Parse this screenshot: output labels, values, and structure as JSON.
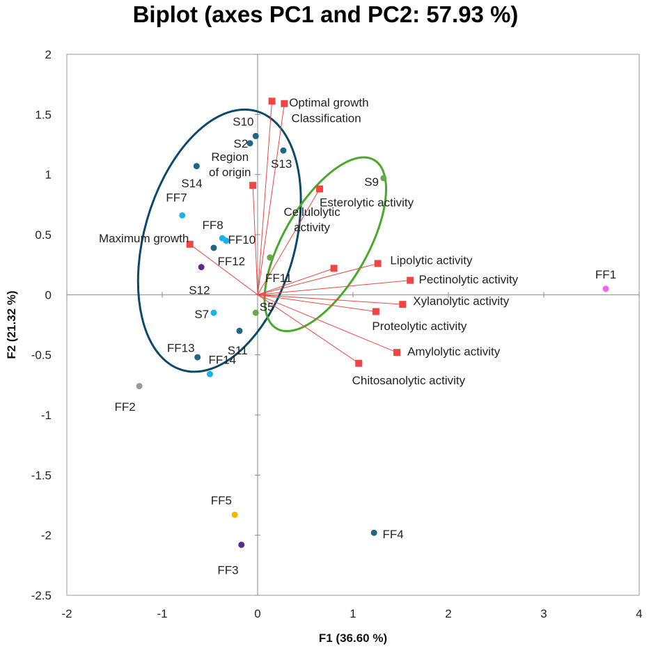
{
  "title": "Biplot (axes PC1 and PC2: 57.93 %)",
  "chart_data": {
    "type": "scatter",
    "title": "Biplot (axes PC1 and PC2: 57.93 %)",
    "xlabel": "F1 (36.60 %)",
    "ylabel": "F2 (21.32 %)",
    "xlim": [
      -2,
      4
    ],
    "ylim": [
      -2.5,
      2
    ],
    "xticks": [
      -2,
      -1,
      0,
      1,
      2,
      3,
      4
    ],
    "yticks": [
      -2.5,
      -2,
      -1.5,
      -1,
      -0.5,
      0,
      0.5,
      1,
      1.5,
      2
    ],
    "xtick_labels": [
      "-2",
      "-1",
      "0",
      "1",
      "2",
      "3",
      "4"
    ],
    "ytick_labels": [
      "-2.5",
      "-2",
      "-1.5",
      "-1",
      "-0.5",
      "0",
      "0.5",
      "1",
      "1.5",
      "2"
    ],
    "colors": {
      "variable": "#f04545",
      "dark_blue": "#1f6684",
      "light_blue": "#19b2ee",
      "purple": "#5b2a8c",
      "green": "#6aa84f",
      "magenta": "#ee66ee",
      "gray": "#9a9a9a",
      "yellow": "#f5b800",
      "ellipse_blue": "#0d4a6a",
      "ellipse_green": "#4aa82a",
      "axis": "#888888"
    },
    "variables": [
      {
        "name": "Classification",
        "x": 0.15,
        "y": 1.61,
        "label_lines": [
          "Classification"
        ],
        "anchor": "middle",
        "dx": 0.57,
        "dy": -0.14
      },
      {
        "name": "Optimal growth",
        "x": 0.28,
        "y": 1.59,
        "label_lines": [
          "Optimal growth"
        ],
        "anchor": "start",
        "dx": 0.05,
        "dy": 0.01
      },
      {
        "name": "Region of origin",
        "x": -0.05,
        "y": 0.91,
        "label_lines": [
          "Region",
          "of origin"
        ],
        "anchor": "middle",
        "dx": -0.24,
        "dy": 0.24
      },
      {
        "name": "Esterolytic activity",
        "x": 0.65,
        "y": 0.88,
        "label_lines": [
          "Esterolytic activity"
        ],
        "anchor": "start",
        "dx": 0.0,
        "dy": -0.11
      },
      {
        "name": "Maximum growth",
        "x": -0.71,
        "y": 0.42,
        "label_lines": [
          "Maximum growth"
        ],
        "anchor": "end",
        "dx": -0.01,
        "dy": 0.05
      },
      {
        "name": "Cellulolytic activity",
        "x": 0.8,
        "y": 0.22,
        "label_lines": [
          "Cellulolytic",
          "activity"
        ],
        "anchor": "middle",
        "dx": -0.23,
        "dy": 0.47
      },
      {
        "name": "Lipolytic activity",
        "x": 1.26,
        "y": 0.26,
        "label_lines": [
          "Lipolytic activity"
        ],
        "anchor": "start",
        "dx": 0.13,
        "dy": 0.03
      },
      {
        "name": "Pectinolytic activity",
        "x": 1.6,
        "y": 0.12,
        "label_lines": [
          "Pectinolytic activity"
        ],
        "anchor": "start",
        "dx": 0.09,
        "dy": 0.01
      },
      {
        "name": "Xylanolytic activity",
        "x": 1.52,
        "y": -0.08,
        "label_lines": [
          "Xylanolytic activity"
        ],
        "anchor": "start",
        "dx": 0.11,
        "dy": 0.03
      },
      {
        "name": "Proteolytic activity",
        "x": 1.24,
        "y": -0.14,
        "label_lines": [
          "Proteolytic activity"
        ],
        "anchor": "start",
        "dx": -0.04,
        "dy": -0.12
      },
      {
        "name": "Amylolytic activity",
        "x": 1.46,
        "y": -0.48,
        "label_lines": [
          "Amylolytic activity"
        ],
        "anchor": "start",
        "dx": 0.11,
        "dy": 0.01
      },
      {
        "name": "Chitosanolytic activity",
        "x": 1.06,
        "y": -0.57,
        "label_lines": [
          "Chitosanolytic activity"
        ],
        "anchor": "start",
        "dx": -0.07,
        "dy": -0.14
      }
    ],
    "observations": [
      {
        "name": "FF1",
        "x": 3.65,
        "y": 0.05,
        "color": "magenta",
        "anchor": "middle",
        "dx": 0.0,
        "dy": 0.12
      },
      {
        "name": "FF2",
        "x": -1.24,
        "y": -0.76,
        "color": "gray",
        "anchor": "middle",
        "dx": -0.15,
        "dy": -0.17
      },
      {
        "name": "FF3",
        "x": -0.17,
        "y": -2.08,
        "color": "purple",
        "anchor": "end",
        "dx": -0.03,
        "dy": -0.21
      },
      {
        "name": "FF4",
        "x": 1.22,
        "y": -1.98,
        "color": "dark_blue",
        "anchor": "start",
        "dx": 0.09,
        "dy": -0.01
      },
      {
        "name": "FF5",
        "x": -0.24,
        "y": -1.83,
        "color": "yellow",
        "anchor": "end",
        "dx": -0.03,
        "dy": 0.12
      },
      {
        "name": "FF7",
        "x": -0.79,
        "y": 0.66,
        "color": "light_blue",
        "anchor": "middle",
        "dx": -0.06,
        "dy": 0.15
      },
      {
        "name": "FF8",
        "x": -0.37,
        "y": 0.47,
        "color": "light_blue",
        "anchor": "middle",
        "dx": -0.1,
        "dy": 0.11
      },
      {
        "name": "FF10",
        "x": -0.33,
        "y": 0.45,
        "color": "light_blue",
        "anchor": "start",
        "dx": 0.02,
        "dy": 0.01
      },
      {
        "name": "FF11",
        "x": 0.13,
        "y": 0.31,
        "color": "green",
        "anchor": "start",
        "dx": -0.05,
        "dy": -0.17
      },
      {
        "name": "FF12",
        "x": -0.46,
        "y": 0.39,
        "color": "dark_blue",
        "anchor": "start",
        "dx": 0.04,
        "dy": -0.11
      },
      {
        "name": "FF13",
        "x": -0.63,
        "y": -0.52,
        "color": "dark_blue",
        "anchor": "end",
        "dx": -0.03,
        "dy": 0.08
      },
      {
        "name": "FF14",
        "x": -0.5,
        "y": -0.66,
        "color": "light_blue",
        "anchor": "middle",
        "dx": 0.13,
        "dy": 0.12
      },
      {
        "name": "S2",
        "x": -0.08,
        "y": 1.26,
        "color": "dark_blue",
        "anchor": "end",
        "dx": -0.02,
        "dy": 0.0
      },
      {
        "name": "S5",
        "x": -0.02,
        "y": -0.15,
        "color": "green",
        "anchor": "start",
        "dx": 0.04,
        "dy": 0.05
      },
      {
        "name": "S7",
        "x": -0.46,
        "y": -0.15,
        "color": "light_blue",
        "anchor": "end",
        "dx": -0.05,
        "dy": -0.01
      },
      {
        "name": "S9",
        "x": 1.32,
        "y": 0.97,
        "color": "green",
        "anchor": "end",
        "dx": -0.05,
        "dy": -0.03
      },
      {
        "name": "S10",
        "x": -0.02,
        "y": 1.32,
        "color": "dark_blue",
        "anchor": "end",
        "dx": -0.02,
        "dy": 0.12
      },
      {
        "name": "S11",
        "x": -0.19,
        "y": -0.3,
        "color": "dark_blue",
        "anchor": "middle",
        "dx": -0.02,
        "dy": -0.16
      },
      {
        "name": "S12",
        "x": -0.59,
        "y": 0.23,
        "color": "purple",
        "anchor": "middle",
        "dx": -0.02,
        "dy": -0.19
      },
      {
        "name": "S13",
        "x": 0.27,
        "y": 1.2,
        "color": "dark_blue",
        "anchor": "middle",
        "dx": -0.02,
        "dy": -0.11
      },
      {
        "name": "S14",
        "x": -0.64,
        "y": 1.07,
        "color": "dark_blue",
        "anchor": "middle",
        "dx": -0.05,
        "dy": -0.14
      }
    ],
    "ellipses": [
      {
        "name": "blue-group",
        "cx": -0.4,
        "cy": 0.45,
        "rx": 0.79,
        "ry": 1.12,
        "rotation": 16,
        "color": "ellipse_blue"
      },
      {
        "name": "green-group",
        "cx": 0.71,
        "cy": 0.42,
        "rx": 0.44,
        "ry": 0.81,
        "rotation": 30,
        "color": "ellipse_green"
      }
    ]
  }
}
